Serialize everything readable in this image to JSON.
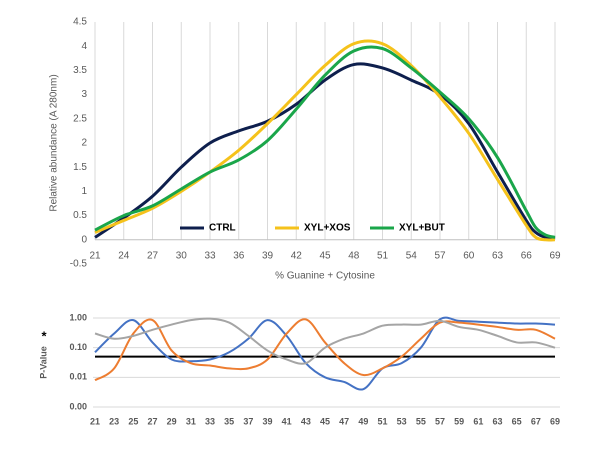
{
  "chart_data": [
    {
      "type": "line",
      "y_label": "Relative abundance (A 280nm)",
      "x_label": "% Guanine + Cytosine",
      "x": [
        21,
        24,
        27,
        30,
        33,
        36,
        39,
        42,
        45,
        48,
        51,
        54,
        57,
        60,
        63,
        66,
        67,
        68,
        69
      ],
      "xlim": [
        21,
        69
      ],
      "xticks": [
        21,
        24,
        27,
        30,
        33,
        36,
        39,
        42,
        45,
        48,
        51,
        54,
        57,
        60,
        63,
        66,
        69
      ],
      "ylim": [
        -0.5,
        4.5
      ],
      "yticks": [
        -0.5,
        0,
        0.5,
        1,
        1.5,
        2,
        2.5,
        3,
        3.5,
        4,
        4.5
      ],
      "grid": "x",
      "legend": "bottom",
      "series": [
        {
          "name": "CTRL",
          "color": "#0e1f4d",
          "values": [
            0.05,
            0.45,
            0.9,
            1.5,
            2.0,
            2.25,
            2.45,
            2.8,
            3.3,
            3.62,
            3.55,
            3.3,
            3.0,
            2.4,
            1.4,
            0.4,
            0.15,
            0.05,
            0.02
          ]
        },
        {
          "name": "XYL+XOS",
          "color": "#f5c21b",
          "values": [
            0.15,
            0.4,
            0.65,
            1.0,
            1.4,
            1.85,
            2.4,
            3.0,
            3.6,
            4.05,
            4.05,
            3.6,
            2.95,
            2.2,
            1.25,
            0.3,
            0.05,
            0.0,
            0.0
          ]
        },
        {
          "name": "XYL+BUT",
          "color": "#1aa64a",
          "values": [
            0.2,
            0.5,
            0.7,
            1.05,
            1.4,
            1.65,
            2.05,
            2.7,
            3.4,
            3.9,
            3.95,
            3.55,
            3.05,
            2.5,
            1.7,
            0.6,
            0.25,
            0.1,
            0.05
          ]
        }
      ]
    },
    {
      "type": "line",
      "y_label": "P-Value",
      "annotation": "*",
      "log_y": true,
      "categories": [
        21,
        23,
        25,
        27,
        29,
        31,
        33,
        35,
        37,
        39,
        41,
        43,
        45,
        47,
        49,
        51,
        53,
        55,
        57,
        59,
        61,
        63,
        65,
        67,
        69
      ],
      "ylim": [
        0.001,
        1
      ],
      "yticks": [
        {
          "value": 0.001,
          "label": "0.00"
        },
        {
          "value": 0.01,
          "label": "0.01"
        },
        {
          "value": 0.1,
          "label": "0.10"
        },
        {
          "value": 1,
          "label": "1.00"
        }
      ],
      "grid": "y",
      "threshold": 0.05,
      "threshold_color": "#000000",
      "series": [
        {
          "color": "#4472c4",
          "values": [
            0.07,
            0.3,
            0.85,
            0.15,
            0.04,
            0.035,
            0.04,
            0.07,
            0.2,
            0.85,
            0.25,
            0.03,
            0.01,
            0.007,
            0.004,
            0.02,
            0.03,
            0.1,
            0.9,
            0.8,
            0.75,
            0.7,
            0.65,
            0.65,
            0.6
          ]
        },
        {
          "color": "#ed7d31",
          "values": [
            0.008,
            0.02,
            0.3,
            0.85,
            0.08,
            0.03,
            0.025,
            0.02,
            0.02,
            0.04,
            0.3,
            0.9,
            0.15,
            0.03,
            0.012,
            0.02,
            0.05,
            0.2,
            0.7,
            0.7,
            0.6,
            0.5,
            0.4,
            0.4,
            0.2
          ]
        },
        {
          "color": "#a5a5a5",
          "values": [
            0.3,
            0.2,
            0.25,
            0.4,
            0.6,
            0.85,
            0.95,
            0.7,
            0.25,
            0.08,
            0.04,
            0.03,
            0.1,
            0.2,
            0.3,
            0.55,
            0.6,
            0.6,
            0.8,
            0.5,
            0.4,
            0.25,
            0.15,
            0.15,
            0.1
          ]
        }
      ]
    }
  ]
}
